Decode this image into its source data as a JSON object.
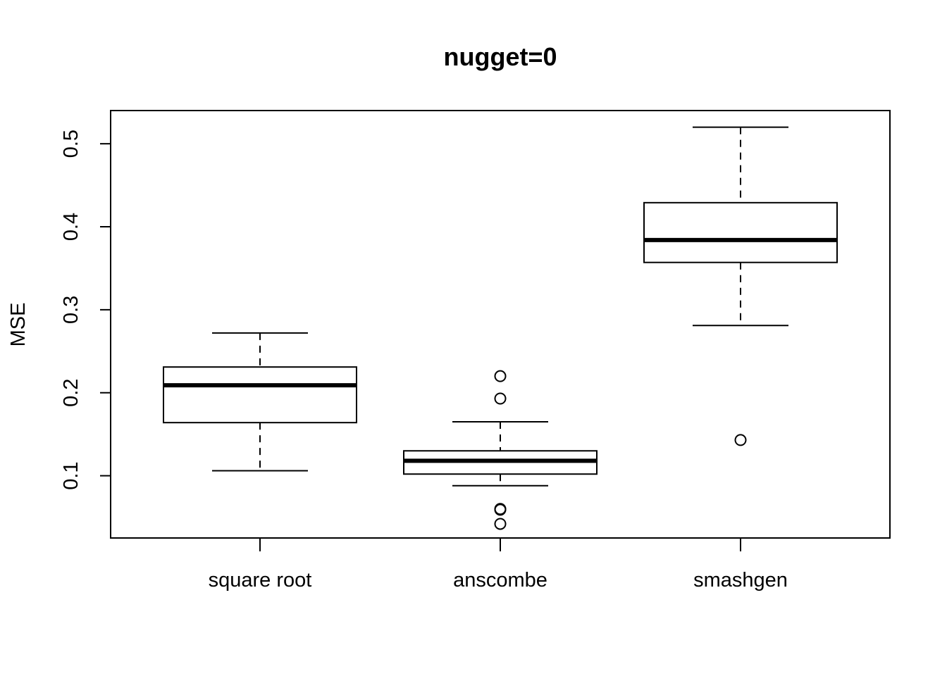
{
  "chart_data": {
    "type": "boxplot",
    "title": "nugget=0",
    "xlabel": "",
    "ylabel": "MSE",
    "ylim": [
      0.025,
      0.54
    ],
    "yticks": [
      0.1,
      0.2,
      0.3,
      0.4,
      0.5
    ],
    "ytick_labels": [
      "0.1",
      "0.2",
      "0.3",
      "0.4",
      "0.5"
    ],
    "grid": false,
    "categories": [
      "square root",
      "anscombe",
      "smashgen"
    ],
    "boxes": [
      {
        "category": "square root",
        "whisker_low": 0.106,
        "q1": 0.164,
        "median": 0.209,
        "q3": 0.231,
        "whisker_high": 0.272,
        "outliers": []
      },
      {
        "category": "anscombe",
        "whisker_low": 0.088,
        "q1": 0.102,
        "median": 0.118,
        "q3": 0.13,
        "whisker_high": 0.165,
        "outliers": [
          0.22,
          0.193,
          0.06,
          0.059,
          0.042
        ]
      },
      {
        "category": "smashgen",
        "whisker_low": 0.281,
        "q1": 0.357,
        "median": 0.384,
        "q3": 0.429,
        "whisker_high": 0.52,
        "outliers": [
          0.143
        ]
      }
    ]
  }
}
